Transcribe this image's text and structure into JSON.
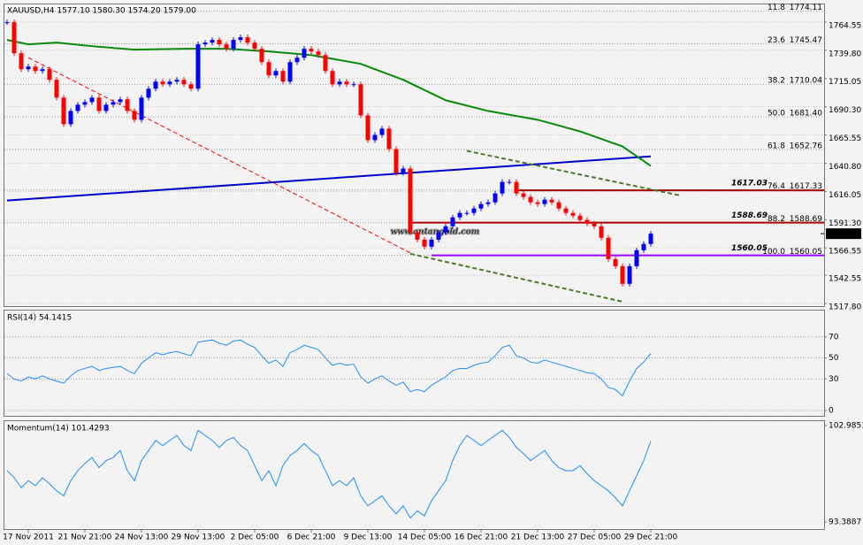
{
  "chart_data": [
    {
      "type": "candlestick",
      "title": "XAUUSD,H4 1577.10 1580.30 1574.20 1579.00",
      "watermark": "www.antangold.com",
      "categories": [
        null,
        null,
        null,
        "17 Nov 2011",
        null,
        null,
        null,
        null,
        null,
        null,
        null,
        "21 Nov 21:00",
        null,
        null,
        null,
        null,
        null,
        null,
        null,
        "24 Nov 13:00",
        null,
        null,
        null,
        null,
        null,
        null,
        null,
        "29 Nov 13:00",
        null,
        null,
        null,
        null,
        null,
        null,
        null,
        "2 Dec 05:00",
        null,
        null,
        null,
        null,
        null,
        null,
        null,
        "6 Dec 21:00",
        null,
        null,
        null,
        null,
        null,
        null,
        null,
        "9 Dec 13:00",
        null,
        null,
        null,
        null,
        null,
        null,
        null,
        "14 Dec 05:00",
        null,
        null,
        null,
        null,
        null,
        null,
        null,
        "16 Dec 21:00",
        null,
        null,
        null,
        null,
        null,
        null,
        null,
        "21 Dec 13:00",
        null,
        null,
        null,
        null,
        null,
        null,
        null,
        "27 Dec 05:00",
        null,
        null,
        null,
        null,
        null,
        null,
        null,
        "29 Dec 21:00"
      ],
      "close": [
        1764.4,
        1737.2,
        1723.2,
        1725.5,
        1721.6,
        1723.2,
        1713.9,
        1698.3,
        1675.0,
        1686.6,
        1692.1,
        1694.4,
        1698.3,
        1686.6,
        1692.1,
        1694.4,
        1696.8,
        1686.6,
        1678.9,
        1698.3,
        1706.1,
        1712.3,
        1710.0,
        1712.3,
        1713.9,
        1710.0,
        1706.1,
        1745.0,
        1746.5,
        1748.9,
        1745.0,
        1741.1,
        1748.9,
        1751.2,
        1746.5,
        1741.1,
        1729.4,
        1717.8,
        1721.6,
        1712.3,
        1729.4,
        1733.3,
        1741.1,
        1738.8,
        1735.6,
        1721.6,
        1710.0,
        1712.3,
        1710.0,
        1710.0,
        1682.7,
        1661.0,
        1665.6,
        1671.1,
        1653.2,
        1632.2,
        1636.1,
        1580.1,
        1573.8,
        1567.6,
        1573.8,
        1580.1,
        1585.5,
        1593.3,
        1597.2,
        1597.2,
        1601.1,
        1605.0,
        1606.5,
        1614.3,
        1624.4,
        1624.4,
        1614.3,
        1611.2,
        1606.5,
        1605.0,
        1608.8,
        1606.5,
        1601.1,
        1597.2,
        1594.8,
        1591.0,
        1587.8,
        1585.5,
        1575.4,
        1556.7,
        1550.5,
        1535.0,
        1550.5,
        1564.5,
        1570.0,
        1579.0
      ],
      "up_color": "#0000ff",
      "down_color": "#ff0000",
      "ylim": [
        1515.5,
        1780
      ],
      "yticks": [
        1764.55,
        {
          "value": 1739.8,
          "label": "1739.80"
        },
        1715.05,
        {
          "value": 1690.3,
          "label": "1690.30"
        },
        1665.55,
        {
          "value": 1640.8,
          "label": "1640.80"
        },
        1616.05,
        {
          "value": 1591.3,
          "label": "1591.30"
        },
        1566.55,
        1542.55,
        {
          "value": 1517.8,
          "label": "1517.80"
        }
      ],
      "grid": true,
      "last_price": {
        "value": 1579,
        "label": "1579.00"
      },
      "moving_average": {
        "color": "#0a8a0a",
        "x": [
          0,
          3,
          7,
          12,
          18,
          25,
          31,
          37,
          43,
          50,
          56,
          62,
          68,
          75,
          81,
          87,
          91
        ],
        "values": [
          1748.9,
          1745.0,
          1746.5,
          1743.4,
          1740.3,
          1741.1,
          1741.1,
          1738.8,
          1735.6,
          1727.9,
          1713.9,
          1696.0,
          1686.6,
          1678.9,
          1668.7,
          1655.5,
          1638.4
        ]
      },
      "trendlines": [
        {
          "color": "#ff0000",
          "dash": true,
          "width": 1,
          "points": [
            [
              3,
              1733.3
            ],
            [
              57,
              1562.2
            ]
          ]
        },
        {
          "color": "#0000cc",
          "dash": false,
          "width": 2,
          "points": [
            [
              0,
              1608.1
            ],
            [
              91,
              1646.8
            ]
          ]
        },
        {
          "color": "#4a7a2a",
          "dash": true,
          "width": 2,
          "points": [
            [
              65,
              1651.6
            ],
            [
              95,
              1612.7
            ]
          ]
        },
        {
          "color": "#4a7a2a",
          "dash": true,
          "width": 2,
          "points": [
            [
              57,
              1561.4
            ],
            [
              87,
              1519.4
            ]
          ]
        }
      ],
      "levels": [
        {
          "value": 1617.03,
          "color": "#aa0000",
          "start": 72
        },
        {
          "value": 1588.69,
          "color": "#aa0000",
          "start": 57
        },
        {
          "value": 1560.05,
          "color": "#9900ff",
          "start": 60
        }
      ],
      "fibonacci": [
        {
          "ratio": 11.8,
          "price": 1774.11
        },
        {
          "ratio": 23.6,
          "price": 1745.47
        },
        {
          "ratio": 38.2,
          "price": 1710.04
        },
        {
          "ratio": {
            "value": 50,
            "label": "50.0"
          },
          "price": {
            "value": 1681.4,
            "label": "1681.40"
          }
        },
        {
          "ratio": 61.8,
          "price": 1652.76
        },
        {
          "ratio": 76.4,
          "price": 1617.33
        },
        {
          "ratio": 88.2,
          "price": 1588.69
        },
        {
          "ratio": {
            "value": 100,
            "label": "100.0"
          },
          "price": 1560.05
        }
      ]
    },
    {
      "type": "line",
      "title": "RSI(14) 54.1415",
      "color": "#1e90ff",
      "values": [
        35,
        30,
        28,
        32,
        30,
        33,
        30,
        28,
        26,
        33,
        38,
        40,
        42,
        38,
        40,
        41,
        42,
        38,
        35,
        45,
        50,
        55,
        53,
        55,
        56,
        54,
        52,
        65,
        66,
        67,
        64,
        62,
        66,
        67,
        63,
        60,
        52,
        45,
        48,
        42,
        55,
        58,
        62,
        60,
        58,
        50,
        43,
        45,
        43,
        44,
        32,
        26,
        30,
        33,
        28,
        24,
        27,
        18,
        20,
        18,
        24,
        28,
        32,
        38,
        40,
        40,
        43,
        45,
        46,
        52,
        60,
        62,
        52,
        50,
        46,
        45,
        48,
        46,
        44,
        42,
        40,
        38,
        36,
        35,
        30,
        22,
        20,
        14,
        28,
        40,
        46,
        54.1415
      ],
      "ylim": [
        -5,
        95
      ],
      "yticks": [
        0,
        30,
        50,
        70
      ],
      "grid": true
    },
    {
      "type": "line",
      "title": "Momentum(14) 101.4293",
      "color": "#1e90ff",
      "values": [
        98.5,
        97.8,
        96.8,
        97.5,
        97.0,
        97.8,
        97.2,
        96.5,
        96.0,
        97.5,
        98.5,
        99.2,
        99.8,
        98.8,
        99.5,
        99.8,
        100.5,
        98.5,
        97.5,
        99.5,
        100.5,
        101.5,
        101.0,
        101.5,
        102.0,
        101.0,
        100.5,
        102.5,
        102.0,
        101.5,
        100.8,
        101.5,
        101.8,
        101.0,
        100.5,
        99.0,
        97.5,
        98.5,
        97.0,
        99.0,
        100.0,
        100.5,
        101.2,
        100.5,
        100.0,
        98.5,
        97.0,
        97.5,
        97.0,
        97.8,
        96.0,
        95.0,
        95.5,
        96.0,
        95.0,
        94.2,
        95.0,
        93.8,
        94.5,
        94.0,
        95.5,
        96.5,
        97.5,
        99.5,
        101.0,
        102.0,
        101.5,
        101.0,
        101.5,
        102.0,
        102.5,
        101.8,
        100.8,
        100.2,
        99.5,
        100.0,
        100.5,
        99.5,
        98.8,
        98.5,
        98.5,
        99.0,
        98.2,
        97.5,
        97.0,
        96.5,
        95.8,
        95.0,
        96.5,
        98.0,
        99.5,
        101.4293
      ],
      "ylim": [
        92.69,
        103.42
      ],
      "yticks": [
        93.3887,
        102.9851
      ],
      "grid": false
    }
  ]
}
